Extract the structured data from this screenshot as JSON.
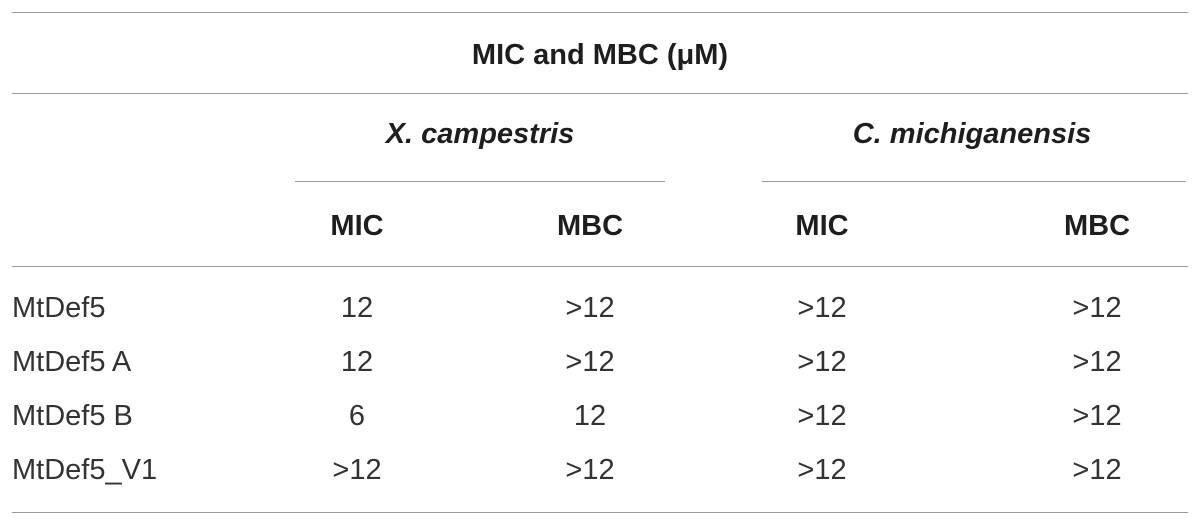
{
  "table": {
    "title": "MIC and MBC (μM)",
    "groups": [
      {
        "label": "X. campestris"
      },
      {
        "label": "C. michiganensis"
      }
    ],
    "subheaders": [
      "MIC",
      "MBC",
      "MIC",
      "MBC"
    ],
    "rows": [
      {
        "name": "MtDef5",
        "cells": [
          "12",
          ">12",
          ">12",
          ">12"
        ]
      },
      {
        "name": "MtDef5 A",
        "cells": [
          "12",
          ">12",
          ">12",
          ">12"
        ]
      },
      {
        "name": "MtDef5 B",
        "cells": [
          "6",
          "12",
          ">12",
          ">12"
        ]
      },
      {
        "name": "MtDef5_V1",
        "cells": [
          ">12",
          ">12",
          ">12",
          ">12"
        ]
      }
    ]
  }
}
